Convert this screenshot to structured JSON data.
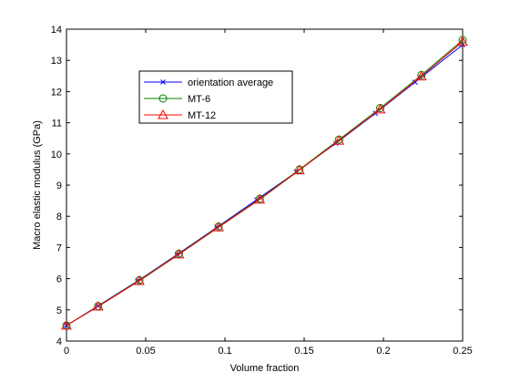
{
  "chart_data": {
    "type": "line",
    "title": "",
    "xlabel": "Volume fraction",
    "ylabel": "Macro elastic modulus (GPa)",
    "xlim": [
      0,
      0.25
    ],
    "ylim": [
      4,
      14
    ],
    "xticks": [
      0,
      0.05,
      0.1,
      0.15,
      0.2,
      0.25
    ],
    "xtick_labels": [
      "0",
      "0.05",
      "0.1",
      "0.15",
      "0.2",
      "0.25"
    ],
    "yticks": [
      4,
      5,
      6,
      7,
      8,
      9,
      10,
      11,
      12,
      13,
      14
    ],
    "ytick_labels": [
      "4",
      "5",
      "6",
      "7",
      "8",
      "9",
      "10",
      "11",
      "12",
      "13",
      "14"
    ],
    "grid": false,
    "legend_position": "upper-left-inside",
    "series": [
      {
        "name": "orientation average",
        "color": "#0000ff",
        "marker": "x",
        "x": [
          0,
          0.02,
          0.045,
          0.07,
          0.095,
          0.12,
          0.145,
          0.17,
          0.195,
          0.22,
          0.25
        ],
        "y": [
          4.5,
          5.13,
          5.93,
          6.78,
          7.65,
          8.53,
          9.42,
          10.34,
          11.3,
          12.3,
          13.5
        ]
      },
      {
        "name": "MT-6",
        "color": "#008000",
        "marker": "o",
        "x": [
          0,
          0.02,
          0.046,
          0.071,
          0.096,
          0.122,
          0.147,
          0.172,
          0.198,
          0.224,
          0.25
        ],
        "y": [
          4.5,
          5.12,
          5.95,
          6.8,
          7.67,
          8.56,
          9.5,
          10.46,
          11.47,
          12.53,
          13.65
        ]
      },
      {
        "name": "MT-12",
        "color": "#ff0000",
        "marker": "triangle",
        "x": [
          0,
          0.02,
          0.046,
          0.071,
          0.096,
          0.122,
          0.147,
          0.172,
          0.198,
          0.224,
          0.25
        ],
        "y": [
          4.5,
          5.11,
          5.93,
          6.78,
          7.65,
          8.54,
          9.48,
          10.43,
          11.43,
          12.49,
          13.6
        ]
      }
    ]
  }
}
